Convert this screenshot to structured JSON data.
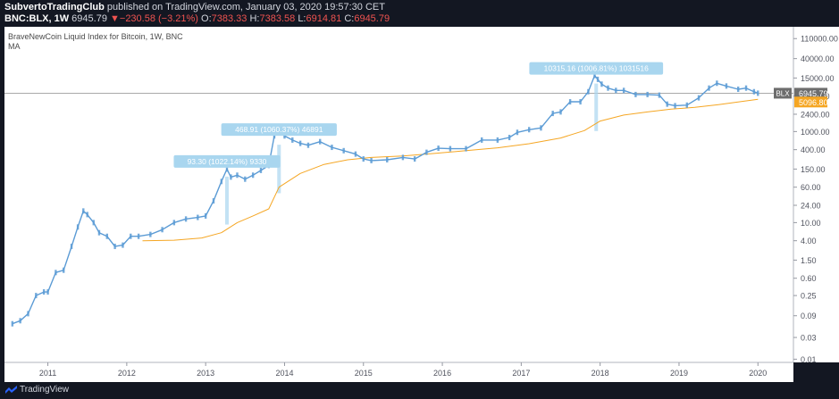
{
  "header": {
    "author": "SubvertoTradingClub",
    "published": "published on TradingView.com, January 03, 2020 19:57:30 CET",
    "symbol": "BNC:BLX, 1W",
    "last": "6945.79",
    "change_arrow": "▼",
    "change": "−230.58 (−3.21%)",
    "open_label": "O:",
    "open": "7383.33",
    "high_label": "H:",
    "high": "7383.58",
    "low_label": "L:",
    "low": "6914.81",
    "close_label": "C:",
    "close": "6945.79"
  },
  "legend": {
    "title": "BraveNewCoin Liquid Index for Bitcoin, 1W, BNC",
    "indicator": "MA"
  },
  "footer": {
    "brand": "TradingView"
  },
  "colors": {
    "background": "#ffffff",
    "candle": "#5b9bd5",
    "ma": "#f5a623",
    "price_label_bg": "#6d6d6d",
    "ma_label_bg": "#f5a623",
    "callout_bg": "#a9d6ef"
  },
  "chart_data": {
    "type": "line",
    "title": "BraveNewCoin Liquid Index for Bitcoin, 1W, BNC",
    "y_scale": "log",
    "ylim": [
      0.0085,
      200000
    ],
    "xlim": [
      2010.45,
      2020.45
    ],
    "x_ticks": [
      "2011",
      "2012",
      "2013",
      "2014",
      "2015",
      "2016",
      "2017",
      "2018",
      "2019",
      "2020"
    ],
    "y_ticks": [
      "110000.00",
      "40000.00",
      "15000.00",
      "6000.00",
      "2400.00",
      "1000.00",
      "400.00",
      "150.00",
      "60.00",
      "24.00",
      "10.00",
      "4.00",
      "1.50",
      "0.60",
      "0.25",
      "0.09",
      "0.03",
      "0.01"
    ],
    "series": [
      {
        "name": "BLX",
        "x": [
          2010.55,
          2010.65,
          2010.75,
          2010.85,
          2010.95,
          2011.0,
          2011.1,
          2011.2,
          2011.3,
          2011.38,
          2011.45,
          2011.5,
          2011.58,
          2011.65,
          2011.75,
          2011.85,
          2011.95,
          2012.05,
          2012.15,
          2012.3,
          2012.45,
          2012.6,
          2012.75,
          2012.9,
          2013.0,
          2013.1,
          2013.2,
          2013.27,
          2013.32,
          2013.4,
          2013.5,
          2013.6,
          2013.7,
          2013.8,
          2013.87,
          2013.93,
          2014.0,
          2014.1,
          2014.2,
          2014.3,
          2014.45,
          2014.6,
          2014.75,
          2014.9,
          2015.0,
          2015.1,
          2015.3,
          2015.5,
          2015.65,
          2015.8,
          2015.95,
          2016.1,
          2016.3,
          2016.5,
          2016.7,
          2016.85,
          2016.95,
          2017.1,
          2017.25,
          2017.4,
          2017.5,
          2017.62,
          2017.75,
          2017.85,
          2017.93,
          2017.97,
          2018.02,
          2018.1,
          2018.2,
          2018.3,
          2018.45,
          2018.6,
          2018.75,
          2018.85,
          2018.95,
          2019.1,
          2019.25,
          2019.38,
          2019.48,
          2019.6,
          2019.75,
          2019.85,
          2019.95,
          2020.0
        ],
        "y": [
          0.06,
          0.07,
          0.1,
          0.25,
          0.3,
          0.3,
          0.8,
          0.9,
          3,
          8,
          18,
          15,
          10,
          6,
          5,
          3,
          3.2,
          5,
          5,
          5.5,
          7,
          10,
          12,
          13,
          14,
          30,
          80,
          150,
          100,
          110,
          90,
          110,
          140,
          180,
          800,
          1000,
          800,
          650,
          550,
          500,
          600,
          450,
          380,
          320,
          250,
          230,
          240,
          270,
          250,
          350,
          430,
          420,
          420,
          650,
          650,
          740,
          960,
          1100,
          1200,
          2500,
          2700,
          4500,
          4500,
          7500,
          17000,
          14000,
          11000,
          9000,
          8000,
          8000,
          6500,
          6500,
          6300,
          4000,
          3700,
          3800,
          5500,
          9000,
          11500,
          10000,
          8500,
          9000,
          7500,
          6945.79
        ]
      },
      {
        "name": "MA",
        "x": [
          2012.2,
          2012.6,
          2012.95,
          2013.2,
          2013.4,
          2013.6,
          2013.8,
          2013.93,
          2014.2,
          2014.5,
          2014.8,
          2015.1,
          2015.5,
          2015.9,
          2016.3,
          2016.7,
          2017.1,
          2017.5,
          2017.8,
          2018.0,
          2018.3,
          2018.6,
          2018.9,
          2019.2,
          2019.5,
          2019.8,
          2020.0
        ],
        "y": [
          4,
          4.1,
          4.6,
          6,
          10,
          14,
          20,
          60,
          120,
          190,
          240,
          270,
          290,
          330,
          380,
          440,
          540,
          720,
          1050,
          1700,
          2300,
          2700,
          3100,
          3400,
          3900,
          4600,
          5096.8
        ]
      }
    ],
    "annotations": [
      {
        "text": "93.30 (1022.14%) 9330",
        "x": 2013.27,
        "y_from": 9.07,
        "y_to": 102.4
      },
      {
        "text": "468.91 (1060.37%) 46891",
        "x": 2013.93,
        "y_from": 44.2,
        "y_to": 513.1
      },
      {
        "text": "10315.16 (1006.81%) 1031516",
        "x": 2017.95,
        "y_from": 1024.5,
        "y_to": 11339.7
      }
    ],
    "price_labels": [
      {
        "series": "BLX",
        "name": "BLX",
        "value": "6945.79"
      },
      {
        "series": "MA",
        "value": "5096.80"
      }
    ]
  }
}
